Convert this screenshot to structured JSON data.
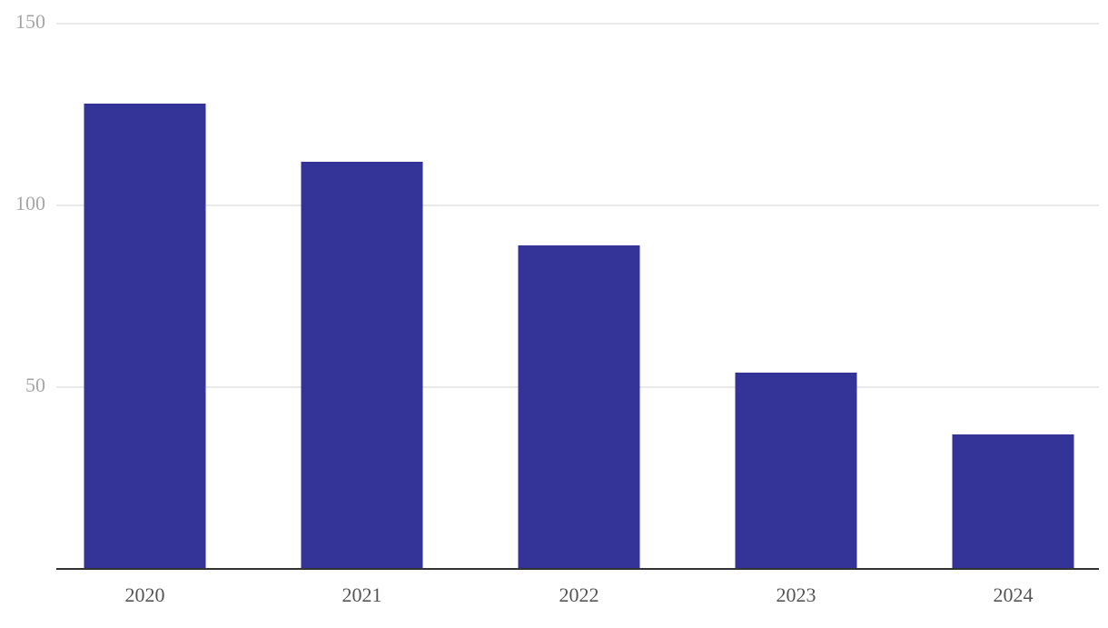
{
  "chart_data": {
    "type": "bar",
    "categories": [
      "2020",
      "2021",
      "2022",
      "2023",
      "2024"
    ],
    "values": [
      128,
      112,
      89,
      54,
      37
    ],
    "color": "#343397",
    "ylim": [
      0,
      150
    ],
    "yticks": [
      50,
      100,
      150
    ],
    "grid": true
  }
}
